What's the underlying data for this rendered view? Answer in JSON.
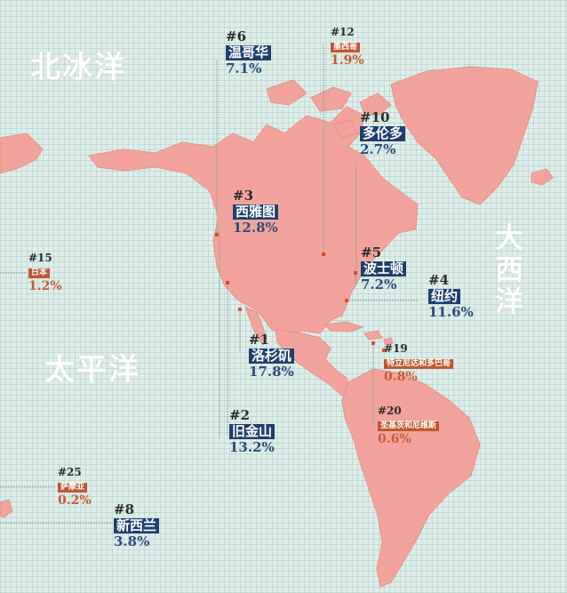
{
  "oceans": {
    "arctic": "北冰洋",
    "pacific": "太平洋",
    "atlantic": "大西洋"
  },
  "colors": {
    "land": "#f2a49c",
    "land_stroke": "#e89089",
    "leader_line": "#8aa39c",
    "dot_red": "#d9482e",
    "blue_tag": "#1e3f6e",
    "orange_tag": "#c0562f"
  },
  "cities": [
    {
      "id": "vancouver",
      "rank": "#6",
      "name": "温哥华",
      "pct": "7.1%",
      "style": "blue"
    },
    {
      "id": "mexico-city",
      "rank": "#12",
      "name": "墨西哥",
      "pct": "1.9%",
      "style": "orange"
    },
    {
      "id": "toronto",
      "rank": "#10",
      "name": "多伦多",
      "pct": "2.7%",
      "style": "blue"
    },
    {
      "id": "seattle",
      "rank": "#3",
      "name": "西雅图",
      "pct": "12.8%",
      "style": "blue"
    },
    {
      "id": "boston",
      "rank": "#5",
      "name": "波士顿",
      "pct": "7.2%",
      "style": "blue"
    },
    {
      "id": "new-york",
      "rank": "#4",
      "name": "纽约",
      "pct": "11.6%",
      "style": "blue"
    },
    {
      "id": "japan",
      "rank": "#15",
      "name": "日本",
      "pct": "1.2%",
      "style": "orange"
    },
    {
      "id": "los-angeles",
      "rank": "#1",
      "name": "洛杉矶",
      "pct": "17.8%",
      "style": "blue"
    },
    {
      "id": "trinidad",
      "rank": "#19",
      "name": "特立尼达和多巴哥",
      "pct": "0.8%",
      "style": "orange"
    },
    {
      "id": "san-francisco",
      "rank": "#2",
      "name": "旧金山",
      "pct": "13.2%",
      "style": "blue"
    },
    {
      "id": "saint-kitts",
      "rank": "#20",
      "name": "圣基茨和尼维斯",
      "pct": "0.6%",
      "style": "orange"
    },
    {
      "id": "samoa",
      "rank": "#25",
      "name": "萨摩亚",
      "pct": "0.2%",
      "style": "orange"
    },
    {
      "id": "new-zealand",
      "rank": "#8",
      "name": "新西兰",
      "pct": "3.8%",
      "style": "blue"
    }
  ]
}
